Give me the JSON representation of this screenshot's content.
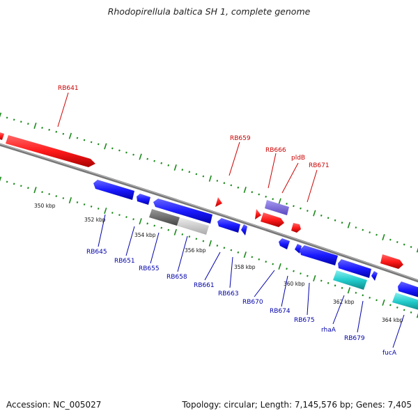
{
  "title": "Rhodopirellula baltica SH 1, complete genome",
  "footer": {
    "accession": "Accession: NC_005027",
    "stats": "Topology: circular; Length: 7,145,576 bp; Genes: 7,405"
  },
  "colors": {
    "forward_gene": "#ff1a1a",
    "reverse_gene": "#1a1aff",
    "rna_gene": "#22cccc",
    "pseudo_gene": "#7060d0",
    "grey_gene": "#777777",
    "backbone": "#888888",
    "tick": "#1a8a1a",
    "label_red": "#cc0000",
    "label_blue": "#0000aa"
  },
  "scale_labels": [
    "350 kbp",
    "352 kbp",
    "354 kbp",
    "356 kbp",
    "358 kbp",
    "360 kbp",
    "362 kbp",
    "364 kbp"
  ],
  "gene_labels": {
    "forward": [
      "RB641",
      "RB659",
      "RB666",
      "pldB",
      "RB671"
    ],
    "reverse": [
      "RB645",
      "RB651",
      "RB655",
      "RB658",
      "RB661",
      "RB663",
      "RB670",
      "RB674",
      "RB675",
      "rhaA",
      "RB679",
      "fucA"
    ]
  }
}
